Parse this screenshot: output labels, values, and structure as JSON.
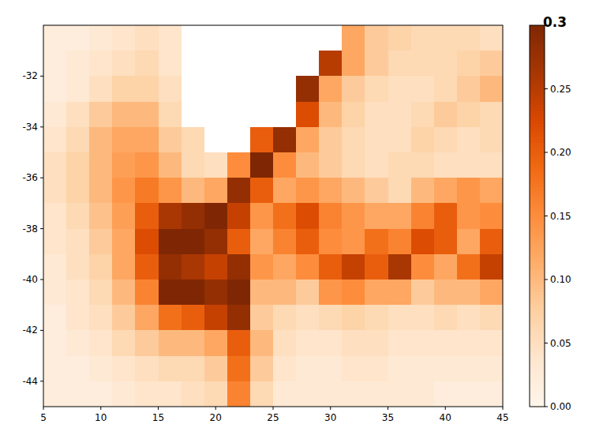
{
  "chart_data": {
    "type": "heatmap",
    "xlim": [
      5,
      45
    ],
    "ylim": [
      -45,
      -30
    ],
    "xticks": [
      5,
      10,
      15,
      20,
      25,
      30,
      35,
      40,
      45
    ],
    "yticks": [
      -32,
      -34,
      -36,
      -38,
      -40,
      -42,
      -44
    ],
    "x": [
      6,
      8,
      10,
      12,
      14,
      16,
      18,
      20,
      22,
      24,
      26,
      28,
      30,
      32,
      34,
      36,
      38,
      40,
      42,
      44
    ],
    "y": [
      -30.5,
      -31.5,
      -32.5,
      -33.5,
      -34.5,
      -35.5,
      -36.5,
      -37.5,
      -38.5,
      -39.5,
      -40.5,
      -41.5,
      -42.5,
      -43.5,
      -44.5
    ],
    "z": [
      [
        0.02,
        0.02,
        0.03,
        0.04,
        0.05,
        0.04,
        null,
        null,
        null,
        null,
        null,
        null,
        null,
        0.12,
        0.08,
        0.07,
        0.06,
        0.06,
        0.06,
        0.05
      ],
      [
        0.02,
        0.03,
        0.04,
        0.05,
        0.06,
        0.04,
        null,
        null,
        null,
        null,
        null,
        null,
        0.25,
        0.12,
        0.08,
        0.06,
        0.06,
        0.06,
        0.07,
        0.08
      ],
      [
        0.02,
        0.03,
        0.05,
        0.07,
        0.07,
        0.05,
        null,
        null,
        null,
        null,
        null,
        0.28,
        0.12,
        0.08,
        0.06,
        0.05,
        0.05,
        0.06,
        0.08,
        0.1
      ],
      [
        0.03,
        0.05,
        0.08,
        0.1,
        0.1,
        0.06,
        null,
        null,
        null,
        null,
        null,
        0.22,
        0.1,
        0.07,
        0.05,
        0.05,
        0.06,
        0.08,
        0.07,
        0.06
      ],
      [
        0.04,
        0.06,
        0.1,
        0.12,
        0.12,
        0.08,
        0.06,
        null,
        null,
        0.2,
        0.28,
        0.12,
        0.08,
        0.06,
        0.05,
        0.05,
        0.07,
        0.06,
        0.05,
        0.06
      ],
      [
        0.05,
        0.07,
        0.1,
        0.13,
        0.14,
        0.1,
        0.06,
        0.05,
        0.15,
        0.3,
        0.15,
        0.1,
        0.08,
        0.06,
        0.05,
        0.06,
        0.06,
        0.05,
        0.05,
        0.05
      ],
      [
        0.05,
        0.07,
        0.1,
        0.14,
        0.17,
        0.14,
        0.1,
        0.12,
        0.28,
        0.2,
        0.12,
        0.14,
        0.12,
        0.1,
        0.08,
        0.06,
        0.1,
        0.12,
        0.14,
        0.12
      ],
      [
        0.04,
        0.06,
        0.09,
        0.13,
        0.2,
        0.26,
        0.28,
        0.3,
        0.24,
        0.14,
        0.18,
        0.22,
        0.16,
        0.14,
        0.12,
        0.12,
        0.16,
        0.2,
        0.14,
        0.15
      ],
      [
        0.04,
        0.05,
        0.08,
        0.12,
        0.22,
        0.3,
        0.3,
        0.28,
        0.2,
        0.12,
        0.16,
        0.2,
        0.15,
        0.14,
        0.18,
        0.16,
        0.22,
        0.2,
        0.12,
        0.2
      ],
      [
        0.03,
        0.05,
        0.07,
        0.12,
        0.2,
        0.28,
        0.26,
        0.24,
        0.28,
        0.14,
        0.12,
        0.15,
        0.2,
        0.24,
        0.2,
        0.26,
        0.15,
        0.12,
        0.18,
        0.24
      ],
      [
        0.03,
        0.04,
        0.06,
        0.1,
        0.16,
        0.3,
        0.3,
        0.28,
        0.3,
        0.1,
        0.1,
        0.08,
        0.14,
        0.15,
        0.12,
        0.12,
        0.08,
        0.1,
        0.1,
        0.12
      ],
      [
        0.02,
        0.04,
        0.05,
        0.08,
        0.12,
        0.18,
        0.2,
        0.24,
        0.28,
        0.08,
        0.06,
        0.05,
        0.06,
        0.07,
        0.06,
        0.05,
        0.05,
        0.06,
        0.05,
        0.06
      ],
      [
        0.02,
        0.03,
        0.04,
        0.06,
        0.08,
        0.1,
        0.1,
        0.12,
        0.2,
        0.1,
        0.05,
        0.04,
        0.04,
        0.05,
        0.05,
        0.04,
        0.04,
        0.04,
        0.04,
        0.04
      ],
      [
        0.02,
        0.02,
        0.03,
        0.04,
        0.05,
        0.06,
        0.06,
        0.08,
        0.18,
        0.08,
        0.04,
        0.03,
        0.03,
        0.04,
        0.04,
        0.03,
        0.03,
        0.03,
        0.03,
        0.03
      ],
      [
        0.02,
        0.02,
        0.02,
        0.03,
        0.04,
        0.04,
        0.05,
        0.06,
        0.16,
        0.06,
        0.03,
        0.03,
        0.03,
        0.03,
        0.03,
        0.03,
        0.03,
        0.02,
        0.02,
        0.02
      ]
    ],
    "zlim": [
      0,
      0.3
    ],
    "zticks": [
      {
        "value": 0,
        "label": "0.00"
      },
      {
        "value": 0.05,
        "label": "0.05"
      },
      {
        "value": 0.1,
        "label": "0.10"
      },
      {
        "value": 0.15,
        "label": "0.15"
      },
      {
        "value": 0.2,
        "label": "0.20"
      },
      {
        "value": 0.25,
        "label": "0.25"
      },
      {
        "value": 0.3,
        "label": "0.3"
      }
    ]
  }
}
